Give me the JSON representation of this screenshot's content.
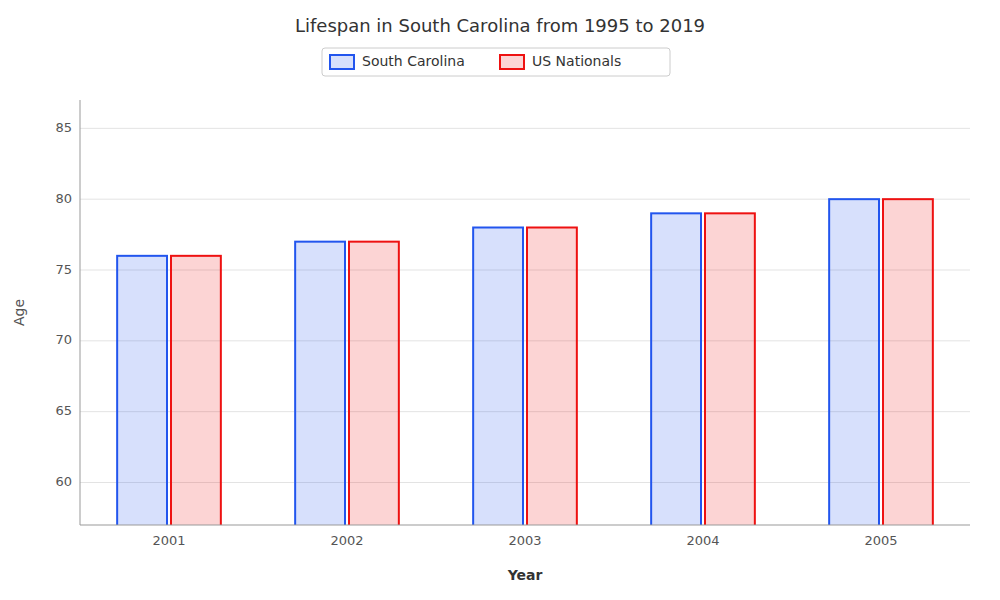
{
  "chart_data": {
    "type": "bar",
    "title": "Lifespan in South Carolina from 1995 to 2019",
    "xlabel": "Year",
    "ylabel": "Age",
    "categories": [
      "2001",
      "2002",
      "2003",
      "2004",
      "2005"
    ],
    "series": [
      {
        "name": "South Carolina",
        "color": "#2255ee",
        "values": [
          76,
          77,
          78,
          79,
          80
        ]
      },
      {
        "name": "US Nationals",
        "color": "#ee1111",
        "values": [
          76,
          77,
          78,
          79,
          80
        ]
      }
    ],
    "ylim": [
      57,
      87
    ],
    "yticks": [
      60,
      65,
      70,
      75,
      80,
      85
    ],
    "grid": true,
    "legend": "top"
  }
}
